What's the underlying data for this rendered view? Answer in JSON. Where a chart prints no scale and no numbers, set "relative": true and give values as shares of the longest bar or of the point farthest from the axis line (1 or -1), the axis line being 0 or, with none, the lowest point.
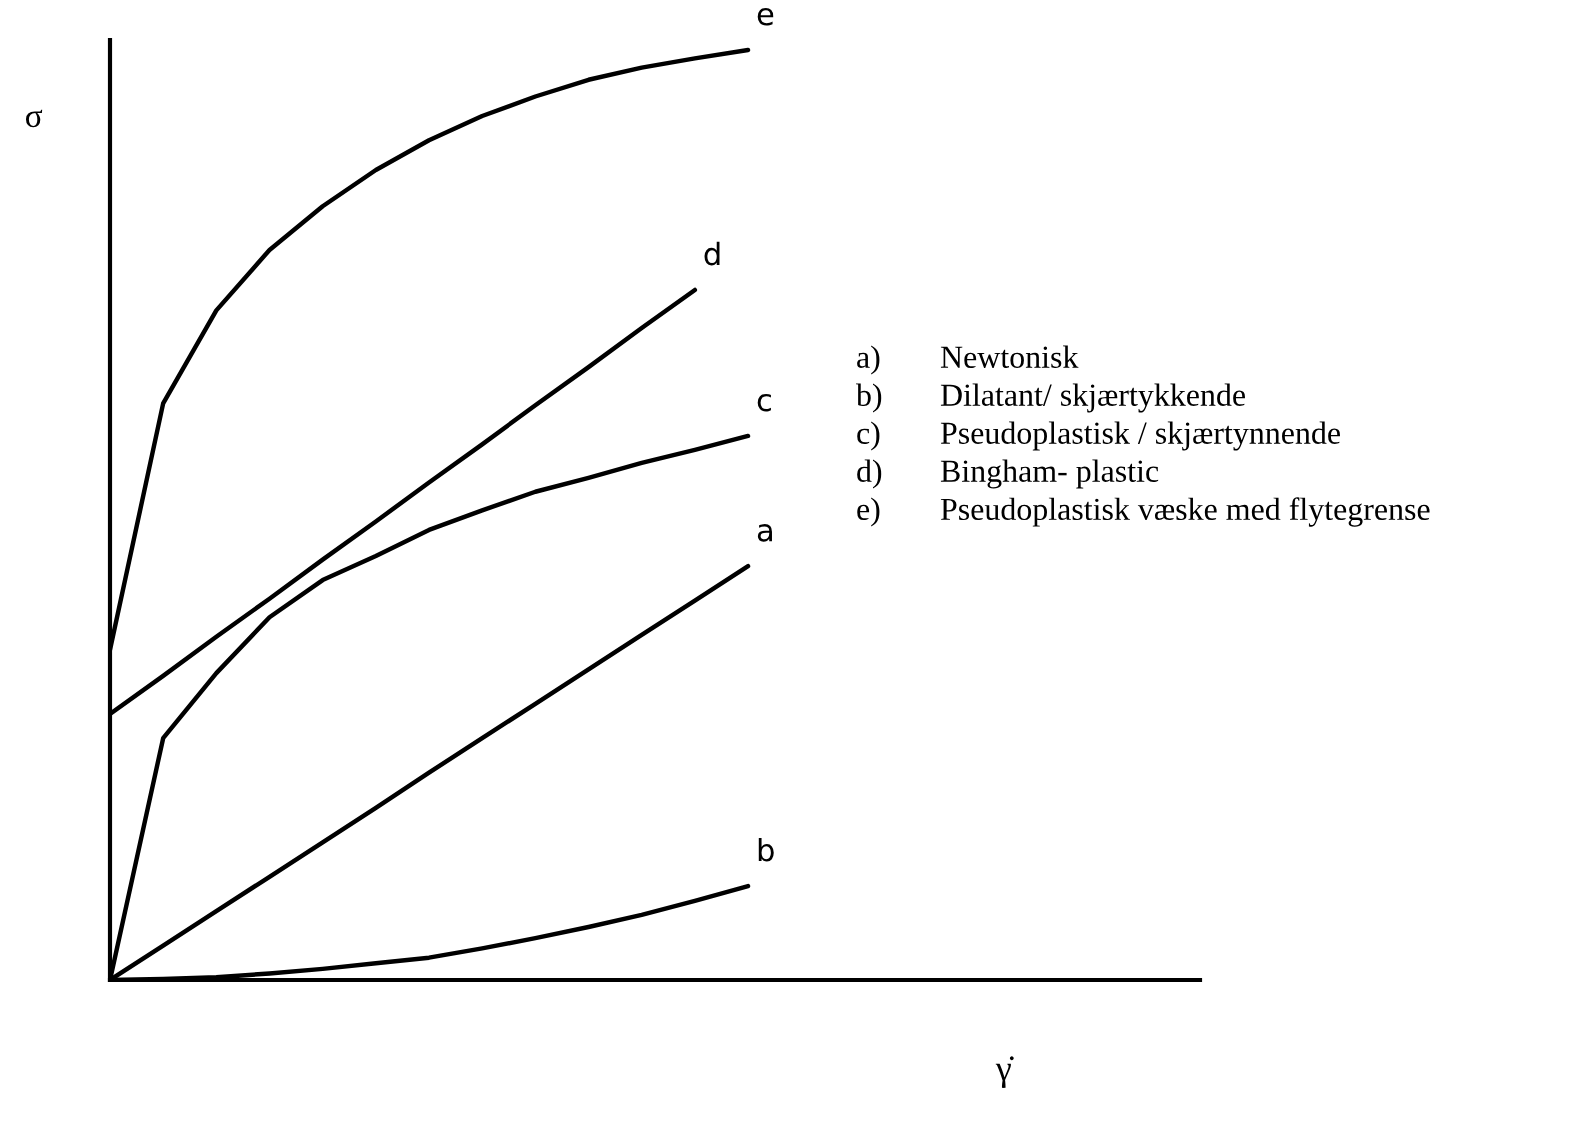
{
  "chart_data": {
    "type": "line",
    "relative": true,
    "xlabel": "γ̇",
    "ylabel": "σ",
    "legend": false,
    "grid": false,
    "marker": "none",
    "line_style": "solid",
    "categories": [
      null,
      null,
      null,
      null,
      null,
      null,
      null,
      null,
      null,
      null,
      null,
      null,
      null,
      null,
      null,
      null,
      null,
      null,
      null,
      null,
      null
    ],
    "series": [
      {
        "name": "e",
        "color": "#000000",
        "values": [
          0.355,
          0.62,
          0.72,
          0.785,
          0.832,
          0.871,
          0.903,
          0.929,
          0.95,
          0.968,
          0.981,
          0.991,
          1,
          null,
          null,
          null,
          null,
          null,
          null,
          null,
          null
        ]
      },
      {
        "name": "d",
        "color": "#000000",
        "values": [
          0.286,
          0.327,
          0.369,
          0.41,
          0.452,
          0.493,
          0.535,
          0.576,
          0.618,
          0.659,
          0.701,
          0.742,
          null,
          null,
          null,
          null,
          null,
          null,
          null,
          null,
          null
        ]
      },
      {
        "name": "c",
        "color": "#000000",
        "values": [
          0,
          0.26,
          0.33,
          0.39,
          0.43,
          0.456,
          0.484,
          0.505,
          0.525,
          0.54,
          0.556,
          0.57,
          0.585,
          null,
          null,
          null,
          null,
          null,
          null,
          null,
          null
        ]
      },
      {
        "name": "a",
        "color": "#000000",
        "values": [
          0,
          0.037,
          0.074,
          0.111,
          0.148,
          0.185,
          0.223,
          0.26,
          0.297,
          0.334,
          0.371,
          0.408,
          0.445,
          null,
          null,
          null,
          null,
          null,
          null,
          null,
          null
        ]
      },
      {
        "name": "b",
        "color": "#000000",
        "values": [
          0,
          0.001,
          0.003,
          0.007,
          0.012,
          0.018,
          0.024,
          0.034,
          0.045,
          0.057,
          0.07,
          0.085,
          0.101,
          null,
          null,
          null,
          null,
          null,
          null,
          null,
          null
        ]
      }
    ],
    "annotations": [
      "a)\tNewtonisk",
      "b)\tDilatant/ skjærtykkende",
      "c)\tPseudoplastisk / skjærtynnende",
      "d)\tBingham- plastic",
      "e)\tPseudoplastisk væske med flytegrense"
    ]
  }
}
